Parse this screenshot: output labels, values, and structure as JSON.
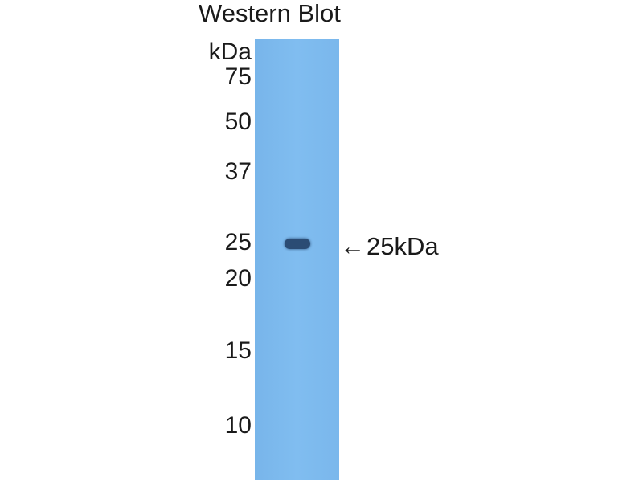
{
  "title": "Western Blot",
  "unit_label": "kDa",
  "markers": [
    "75",
    "50",
    "37",
    "25",
    "20",
    "15",
    "10"
  ],
  "lane_color": "#7ab8ec",
  "band_color": "#2b4c74",
  "annotation": {
    "arrow_icon": "left-arrow",
    "arrow": "←",
    "label": "25kDa"
  }
}
